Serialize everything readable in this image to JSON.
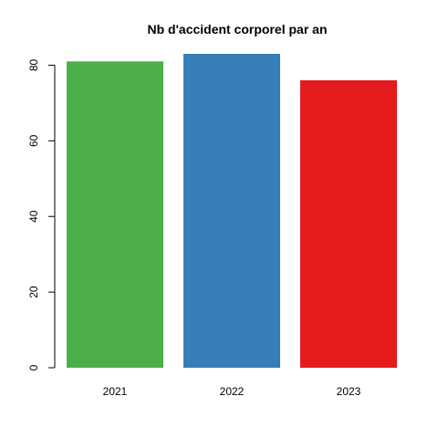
{
  "chart_data": {
    "type": "bar",
    "title": "Nb d'accident corporel par an",
    "xlabel": "",
    "ylabel": "",
    "categories": [
      "2021",
      "2022",
      "2023"
    ],
    "values": [
      81,
      83,
      76
    ],
    "colors": [
      "#4DAF4A",
      "#377EB8",
      "#E41A1C"
    ],
    "ylim": [
      0,
      83
    ],
    "yticks": [
      0,
      20,
      40,
      60,
      80
    ],
    "ytick_labels": [
      "0",
      "20",
      "40",
      "60",
      "80"
    ],
    "grid": false,
    "legend": "none"
  }
}
